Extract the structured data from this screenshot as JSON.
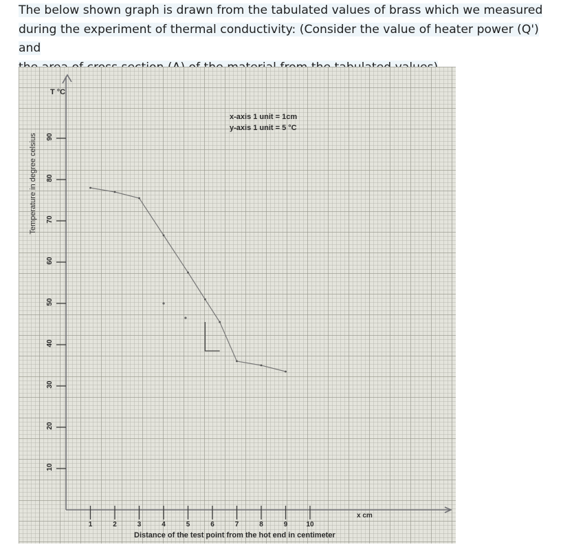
{
  "question": {
    "line1": "The below shown graph is drawn from the tabulated values of brass which we measured",
    "line2": "during the experiment of thermal conductivity: (Consider the value of heater power (Q') and",
    "line3": "the area of cross section (A) of the material from the tabulated values)"
  },
  "chart_data": {
    "type": "line",
    "ylabel": "Temperature in degree celsius",
    "y_unit_label": "T °C",
    "xlabel": "Distance of the test point from the hot end in centimeter",
    "x_unit_label": "x cm",
    "annotations": [
      "x-axis 1 unit = 1cm",
      "y-axis 1 unit = 5 °C"
    ],
    "xlim": [
      0,
      15.5
    ],
    "ylim": [
      0,
      100
    ],
    "x_ticks": [
      1,
      2,
      3,
      4,
      5,
      6,
      7,
      8,
      9,
      10
    ],
    "y_ticks": [
      10,
      20,
      30,
      40,
      50,
      60,
      70,
      80,
      90
    ],
    "grid": true,
    "series": [
      {
        "x": [
          1,
          2,
          3,
          4,
          5,
          5.7,
          6.3,
          7,
          8,
          9
        ],
        "y": [
          78,
          77,
          75.5,
          66.5,
          57.5,
          51,
          45.5,
          36,
          35,
          33.5
        ]
      }
    ],
    "stray_points": [
      {
        "x": 4,
        "y": 50
      },
      {
        "x": 4.9,
        "y": 46.5
      }
    ],
    "slope_triangle": {
      "x1": 5.7,
      "x2": 6.3,
      "y1": 45.5,
      "y2": 38.5
    }
  }
}
